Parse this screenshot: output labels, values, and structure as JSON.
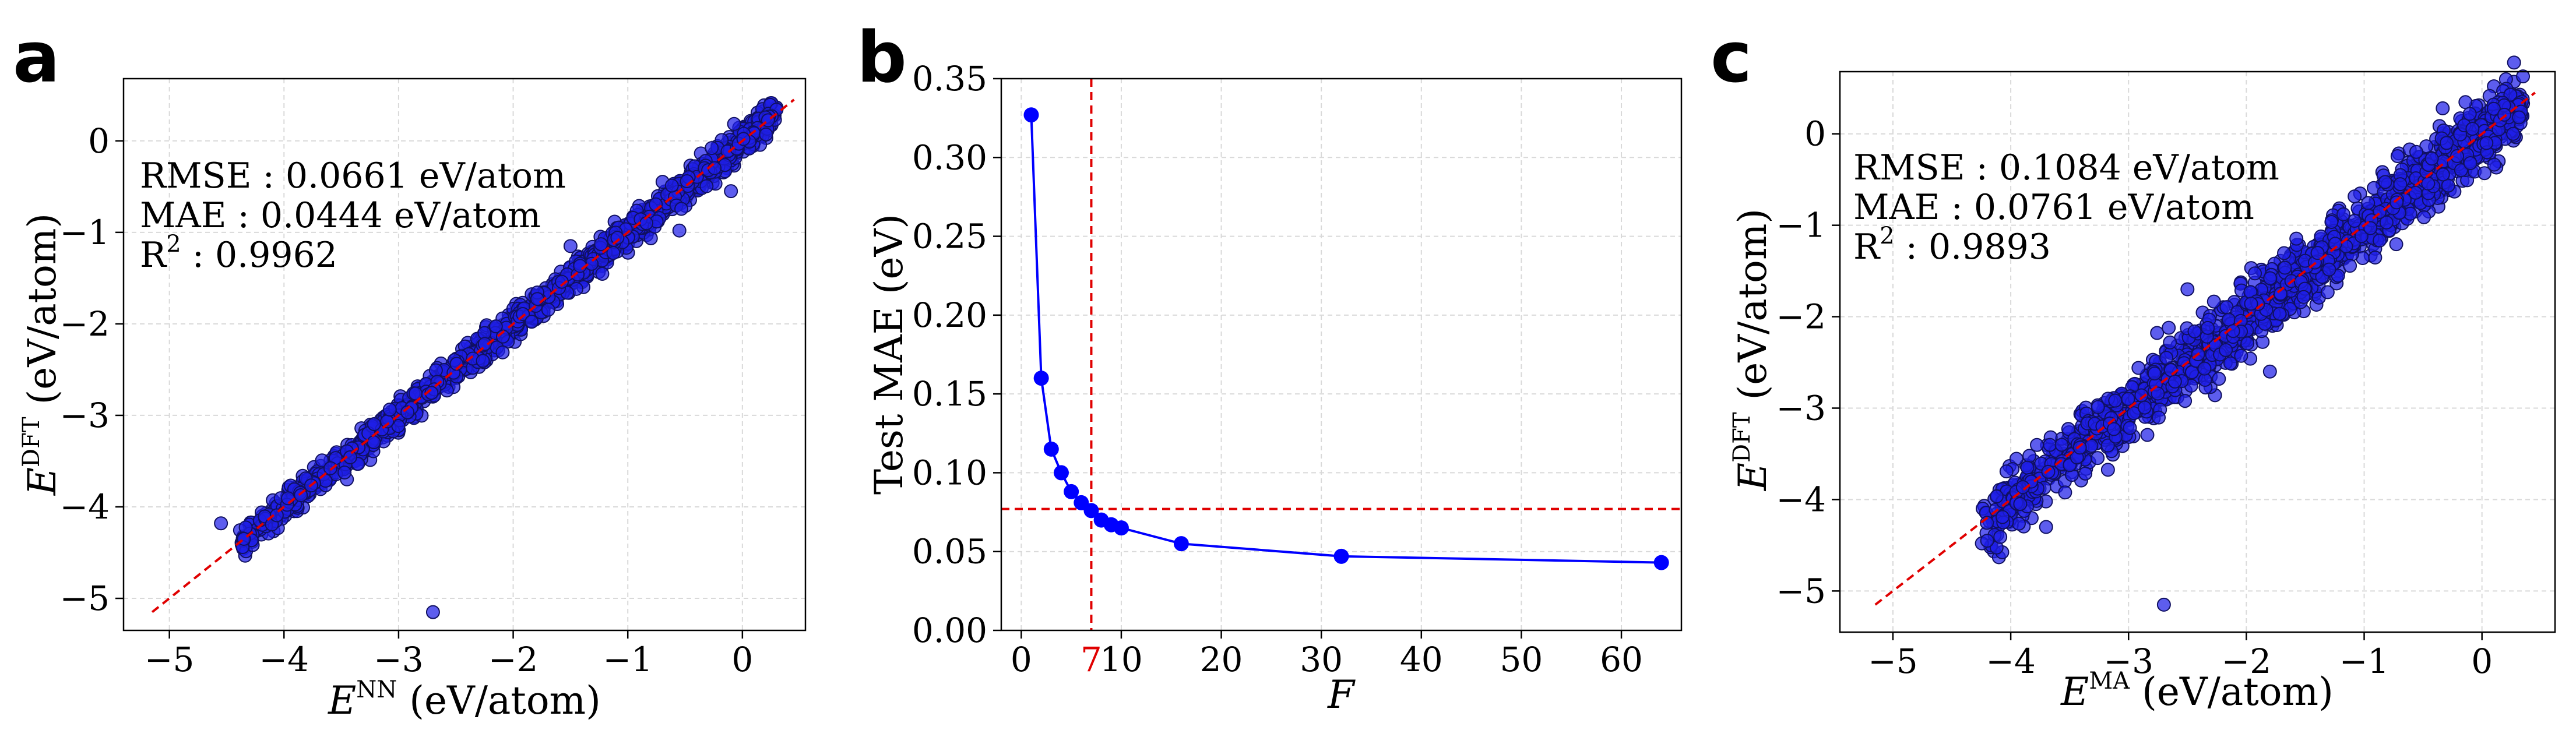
{
  "chart_data": [
    {
      "panel": "a",
      "type": "scatter",
      "xlabel": {
        "base": "E",
        "sup": "NN",
        "unit": " (eV/atom)"
      },
      "ylabel": {
        "base": "E",
        "sup": "DFT",
        "unit": " (eV/atom)"
      },
      "xlim": [
        -5.4,
        0.55
      ],
      "ylim": [
        -5.35,
        0.68
      ],
      "xticks": [
        -5,
        -4,
        -3,
        -2,
        -1,
        0
      ],
      "yticks": [
        -5,
        -4,
        -3,
        -2,
        -1,
        0
      ],
      "xtick_labels": [
        "−5",
        "−4",
        "−3",
        "−2",
        "−1",
        "0"
      ],
      "ytick_labels": [
        "−5",
        "−4",
        "−3",
        "−2",
        "−1",
        "0"
      ],
      "grid": true,
      "stats": {
        "rmse": "RMSE : 0.0661 eV/atom",
        "mae": "MAE : 0.0444 eV/atom",
        "r2_base": "R",
        "r2_sup": "2",
        "r2_val": " : 0.9962"
      },
      "reference_line": [
        [
          -5.15,
          -5.15
        ],
        [
          0.45,
          0.45
        ]
      ],
      "point_band": {
        "x_from": -4.4,
        "x_to": 0.3,
        "spread": 0.09
      },
      "outliers": [
        [
          -2.7,
          -5.15
        ],
        [
          -4.55,
          -4.18
        ],
        [
          -4.35,
          -4.35
        ],
        [
          -0.55,
          -0.98
        ],
        [
          -0.1,
          -0.55
        ],
        [
          -1.5,
          -1.15
        ]
      ],
      "marker_color": "#1f1fe8",
      "marker_edge": "#101060",
      "line_color": "#e00000"
    },
    {
      "panel": "b",
      "type": "line",
      "xlabel": "F",
      "ylabel": "Test MAE (eV)",
      "xlim": [
        -2,
        66
      ],
      "ylim": [
        0,
        0.35
      ],
      "xticks": [
        0,
        10,
        20,
        30,
        40,
        50,
        60
      ],
      "xtick_labels": [
        "0",
        "10",
        "20",
        "30",
        "40",
        "50",
        "60"
      ],
      "yticks": [
        0,
        0.05,
        0.1,
        0.15,
        0.2,
        0.25,
        0.3,
        0.35
      ],
      "ytick_labels": [
        "0.00",
        "0.05",
        "0.10",
        "0.15",
        "0.20",
        "0.25",
        "0.30",
        "0.35"
      ],
      "grid": true,
      "x": [
        1,
        2,
        3,
        4,
        5,
        6,
        7,
        8,
        9,
        10,
        16,
        32,
        64
      ],
      "y": [
        0.327,
        0.16,
        0.115,
        0.1,
        0.088,
        0.081,
        0.076,
        0.07,
        0.067,
        0.065,
        0.055,
        0.047,
        0.043
      ],
      "vline_x": 7,
      "vline_label": "7",
      "hline_y": 0.077,
      "line_color": "#0000ff",
      "ref_color": "#e00000"
    },
    {
      "panel": "c",
      "type": "scatter",
      "xlabel": {
        "base": "E",
        "sup": "MA",
        "unit": " (eV/atom)"
      },
      "ylabel": {
        "base": "E",
        "sup": "DFT",
        "unit": " (eV/atom)"
      },
      "xlim": [
        -5.45,
        0.62
      ],
      "ylim": [
        -5.45,
        0.68
      ],
      "xticks": [
        -5,
        -4,
        -3,
        -2,
        -1,
        0
      ],
      "yticks": [
        -5,
        -4,
        -3,
        -2,
        -1,
        0
      ],
      "xtick_labels": [
        "−5",
        "−4",
        "−3",
        "−2",
        "−1",
        "0"
      ],
      "ytick_labels": [
        "−5",
        "−4",
        "−3",
        "−2",
        "−1",
        "0"
      ],
      "grid": true,
      "stats": {
        "rmse": "RMSE : 0.1084 eV/atom",
        "mae": "MAE : 0.0761 eV/atom",
        "r2_base": "R",
        "r2_sup": "2",
        "r2_val": " : 0.9893"
      },
      "reference_line": [
        [
          -5.15,
          -5.15
        ],
        [
          0.45,
          0.45
        ]
      ],
      "point_band": {
        "x_from": -4.25,
        "x_to": 0.35,
        "spread": 0.2
      },
      "outliers": [
        [
          -2.7,
          -5.15
        ],
        [
          -3.7,
          -4.3
        ],
        [
          -0.3,
          -0.1
        ],
        [
          -4.2,
          -4.45
        ],
        [
          -1.8,
          -2.6
        ],
        [
          -2.5,
          -1.7
        ]
      ],
      "marker_color": "#1f1fe8",
      "marker_edge": "#101060",
      "line_color": "#e00000"
    }
  ]
}
